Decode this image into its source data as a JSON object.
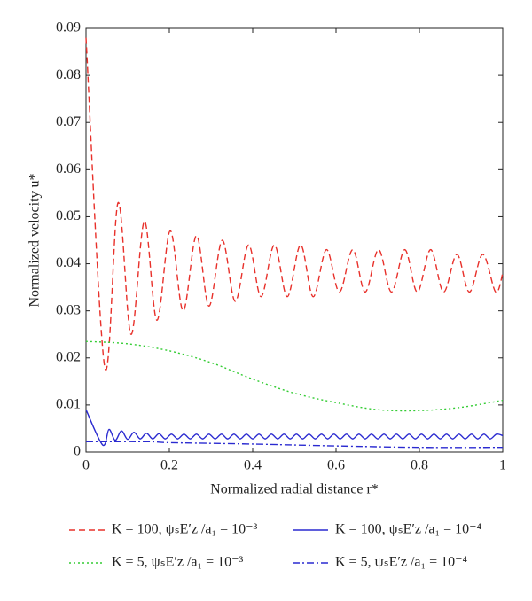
{
  "chart_data": {
    "type": "line",
    "xlabel": "Normalized radial distance r*",
    "ylabel": "Normalized velocity u*",
    "xlim": [
      0,
      1
    ],
    "xticks": [
      0,
      0.2,
      0.4,
      0.6,
      0.8,
      1
    ],
    "ylim": [
      0,
      0.09
    ],
    "yticks": [
      0,
      0.01,
      0.02,
      0.03,
      0.04,
      0.05,
      0.06,
      0.07,
      0.08,
      0.09
    ],
    "series": [
      {
        "name": "K = 100, ψₛE′z /a₁ = 10⁻³",
        "color": "#e8302a",
        "dash": "7,4",
        "x": [
          0,
          0.045,
          0.077,
          0.108,
          0.14,
          0.17,
          0.202,
          0.233,
          0.265,
          0.295,
          0.327,
          0.358,
          0.39,
          0.42,
          0.452,
          0.483,
          0.515,
          0.545,
          0.577,
          0.608,
          0.64,
          0.67,
          0.702,
          0.733,
          0.765,
          0.795,
          0.827,
          0.858,
          0.89,
          0.92,
          0.952,
          0.983,
          1
        ],
        "values": [
          0.088,
          0.018,
          0.053,
          0.025,
          0.049,
          0.028,
          0.047,
          0.03,
          0.046,
          0.031,
          0.045,
          0.032,
          0.044,
          0.033,
          0.044,
          0.033,
          0.044,
          0.033,
          0.043,
          0.034,
          0.043,
          0.034,
          0.043,
          0.034,
          0.043,
          0.034,
          0.043,
          0.034,
          0.042,
          0.034,
          0.042,
          0.034,
          0.038
        ]
      },
      {
        "name": "K = 100, ψₛE′z /a₁ = 10⁻⁴",
        "color": "#2a2ad0",
        "dash": "",
        "x": [
          0,
          0.04,
          0.055,
          0.07,
          0.085,
          0.1,
          0.115,
          0.13,
          0.145,
          0.16,
          0.175,
          0.19,
          0.205,
          0.22,
          0.235,
          0.25,
          0.265,
          0.28,
          0.295,
          0.31,
          0.325,
          0.34,
          0.355,
          0.37,
          0.385,
          0.4,
          0.415,
          0.43,
          0.445,
          0.46,
          0.475,
          0.49,
          0.505,
          0.52,
          0.535,
          0.55,
          0.565,
          0.58,
          0.595,
          0.61,
          0.625,
          0.64,
          0.655,
          0.67,
          0.685,
          0.7,
          0.715,
          0.73,
          0.745,
          0.76,
          0.775,
          0.79,
          0.805,
          0.82,
          0.835,
          0.85,
          0.865,
          0.88,
          0.895,
          0.91,
          0.925,
          0.94,
          0.955,
          0.97,
          0.985,
          1
        ],
        "values": [
          0.009,
          0.0015,
          0.0048,
          0.0025,
          0.0045,
          0.0027,
          0.0042,
          0.0028,
          0.004,
          0.0028,
          0.0039,
          0.0028,
          0.0038,
          0.0028,
          0.0038,
          0.0028,
          0.0038,
          0.0028,
          0.0038,
          0.0028,
          0.0038,
          0.0028,
          0.0038,
          0.0028,
          0.0038,
          0.0028,
          0.0038,
          0.0028,
          0.0038,
          0.0028,
          0.0038,
          0.0028,
          0.0038,
          0.0028,
          0.0038,
          0.0028,
          0.0038,
          0.0028,
          0.0038,
          0.0028,
          0.0038,
          0.0028,
          0.0038,
          0.0028,
          0.0038,
          0.0028,
          0.0038,
          0.0028,
          0.0038,
          0.0028,
          0.0038,
          0.0028,
          0.0038,
          0.0028,
          0.0038,
          0.0028,
          0.0038,
          0.0028,
          0.0038,
          0.0028,
          0.0038,
          0.0028,
          0.0038,
          0.0028,
          0.0038,
          0.0035
        ]
      },
      {
        "name": "K = 5, ψₛE′z /a₁ = 10⁻³",
        "color": "#33cc33",
        "dash": "2,3",
        "x": [
          0,
          0.1,
          0.2,
          0.3,
          0.4,
          0.5,
          0.6,
          0.7,
          0.8,
          0.9,
          1
        ],
        "values": [
          0.0235,
          0.023,
          0.0215,
          0.019,
          0.0155,
          0.0125,
          0.0105,
          0.009,
          0.0088,
          0.0095,
          0.011
        ]
      },
      {
        "name": "K = 5, ψₛE′z /a₁ = 10⁻⁴",
        "color": "#2a2ad0",
        "dash": "8,3,2,3",
        "x": [
          0,
          0.15,
          0.2,
          0.4,
          0.6,
          0.8,
          1
        ],
        "values": [
          0.0022,
          0.0022,
          0.002,
          0.0017,
          0.0013,
          0.001,
          0.001
        ]
      }
    ]
  }
}
